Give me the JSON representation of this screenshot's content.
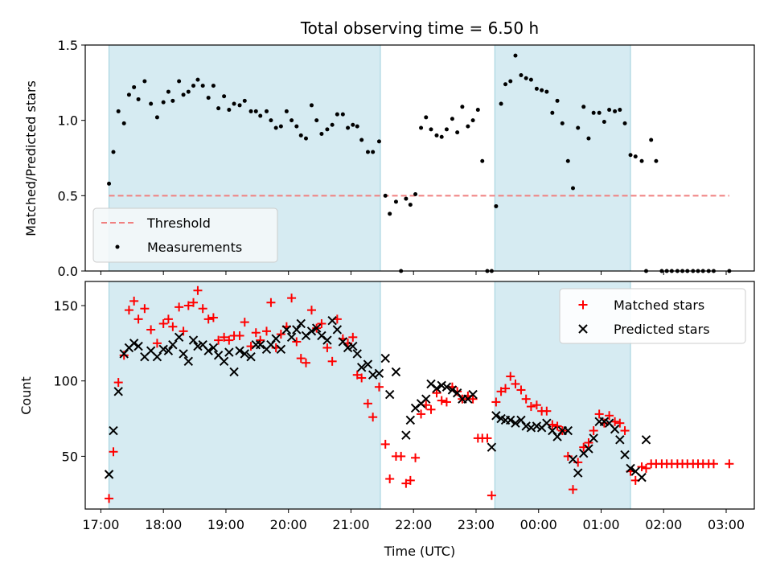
{
  "chart_data": [
    {
      "type": "scatter",
      "title": "Total observing time = 6.50 h",
      "xlabel": "",
      "ylabel": "Matched/Predicted stars",
      "ylim": [
        0,
        1.5
      ],
      "yticks": [
        "0.0",
        "0.5",
        "1.0",
        "1.5"
      ],
      "x_axis": {
        "type": "time",
        "unit": "hours (UTC, >24 = next day)",
        "range": [
          16.75,
          27.45
        ]
      },
      "legend": {
        "placement": "lower-left",
        "entries": [
          "Threshold",
          "Measurements"
        ]
      },
      "shaded_intervals": [
        {
          "start": 17.13,
          "end": 21.47
        },
        {
          "start": 23.3,
          "end": 25.47
        }
      ],
      "threshold": {
        "name": "Threshold",
        "value": 0.5,
        "x_start": 17.13,
        "x_end": 27.05,
        "color": "#f08080",
        "style": "dashed"
      },
      "series": [
        {
          "name": "Measurements",
          "color": "#000000",
          "x": [
            17.13,
            17.2,
            17.28,
            17.37,
            17.45,
            17.53,
            17.6,
            17.7,
            17.8,
            17.9,
            18.0,
            18.08,
            18.15,
            18.25,
            18.32,
            18.4,
            18.48,
            18.55,
            18.63,
            18.72,
            18.8,
            18.88,
            18.97,
            19.05,
            19.13,
            19.22,
            19.3,
            19.4,
            19.48,
            19.55,
            19.65,
            19.72,
            19.8,
            19.88,
            19.97,
            20.05,
            20.13,
            20.2,
            20.28,
            20.37,
            20.45,
            20.53,
            20.62,
            20.7,
            20.78,
            20.87,
            20.95,
            21.03,
            21.1,
            21.17,
            21.27,
            21.35,
            21.45,
            21.55,
            21.62,
            21.72,
            21.8,
            21.88,
            21.95,
            22.03,
            22.12,
            22.2,
            22.28,
            22.37,
            22.45,
            22.53,
            22.62,
            22.7,
            22.78,
            22.87,
            22.95,
            23.03,
            23.1,
            23.18,
            23.25,
            23.32,
            23.4,
            23.47,
            23.55,
            23.63,
            23.72,
            23.8,
            23.88,
            23.97,
            24.05,
            24.13,
            24.22,
            24.3,
            24.38,
            24.47,
            24.55,
            24.63,
            24.72,
            24.8,
            24.88,
            24.97,
            25.05,
            25.13,
            25.22,
            25.3,
            25.38,
            25.47,
            25.55,
            25.65,
            25.72,
            25.8,
            25.88,
            25.97,
            26.05,
            26.13,
            26.22,
            26.3,
            26.38,
            26.47,
            26.55,
            26.63,
            26.72,
            26.8,
            27.05
          ],
          "y": [
            0.58,
            0.79,
            1.06,
            0.98,
            1.17,
            1.22,
            1.14,
            1.26,
            1.11,
            1.02,
            1.12,
            1.19,
            1.13,
            1.26,
            1.17,
            1.19,
            1.23,
            1.27,
            1.23,
            1.15,
            1.23,
            1.08,
            1.16,
            1.07,
            1.11,
            1.1,
            1.13,
            1.06,
            1.06,
            1.03,
            1.06,
            1.0,
            0.95,
            0.96,
            1.06,
            1.0,
            0.96,
            0.9,
            0.88,
            1.1,
            1.0,
            0.91,
            0.94,
            0.97,
            1.04,
            1.04,
            0.95,
            0.97,
            0.96,
            0.87,
            0.79,
            0.79,
            0.86,
            0.5,
            0.38,
            0.46,
            0.0,
            0.48,
            0.44,
            0.51,
            0.95,
            1.02,
            0.94,
            0.9,
            0.89,
            0.94,
            1.01,
            0.92,
            1.09,
            0.96,
            1.0,
            1.07,
            0.73,
            0.0,
            0.0,
            0.43,
            1.11,
            1.24,
            1.26,
            1.43,
            1.3,
            1.28,
            1.27,
            1.21,
            1.2,
            1.19,
            1.05,
            1.13,
            0.98,
            0.73,
            0.55,
            0.95,
            1.09,
            0.88,
            1.05,
            1.05,
            0.99,
            1.07,
            1.06,
            1.07,
            0.98,
            0.77,
            0.76,
            0.73,
            0.0,
            0.87,
            0.73,
            0.0,
            0.0,
            0.0,
            0.0,
            0.0,
            0.0,
            0.0,
            0.0,
            0.0,
            0.0,
            0.0,
            0.0
          ]
        }
      ]
    },
    {
      "type": "scatter",
      "title": "",
      "xlabel": "Time (UTC)",
      "ylabel": "Count",
      "ylim": [
        15,
        166
      ],
      "yticks": [
        "50",
        "100",
        "150"
      ],
      "xticks": [
        "17:00",
        "18:00",
        "19:00",
        "20:00",
        "21:00",
        "22:00",
        "23:00",
        "00:00",
        "01:00",
        "02:00",
        "03:00"
      ],
      "x_axis": {
        "type": "time",
        "unit": "hours (UTC, >24 = next day)",
        "range": [
          16.75,
          27.45
        ]
      },
      "legend": {
        "placement": "upper-right",
        "entries": [
          "Matched stars",
          "Predicted stars"
        ]
      },
      "shaded_intervals": [
        {
          "start": 17.13,
          "end": 21.47
        },
        {
          "start": 23.3,
          "end": 25.47
        }
      ],
      "series": [
        {
          "name": "Matched stars",
          "marker": "+",
          "color": "#ff0000",
          "x": [
            17.13,
            17.2,
            17.28,
            17.37,
            17.45,
            17.53,
            17.6,
            17.7,
            17.8,
            17.9,
            18.0,
            18.08,
            18.15,
            18.25,
            18.32,
            18.4,
            18.48,
            18.55,
            18.63,
            18.72,
            18.8,
            18.88,
            18.97,
            19.05,
            19.13,
            19.22,
            19.3,
            19.4,
            19.48,
            19.55,
            19.65,
            19.72,
            19.8,
            19.88,
            19.97,
            20.05,
            20.13,
            20.2,
            20.28,
            20.37,
            20.45,
            20.53,
            20.62,
            20.7,
            20.78,
            20.87,
            20.95,
            21.03,
            21.1,
            21.17,
            21.27,
            21.35,
            21.45,
            21.55,
            21.62,
            21.72,
            21.8,
            21.88,
            21.95,
            22.03,
            22.12,
            22.2,
            22.28,
            22.37,
            22.45,
            22.53,
            22.62,
            22.7,
            22.78,
            22.87,
            22.95,
            23.03,
            23.1,
            23.18,
            23.25,
            23.32,
            23.4,
            23.47,
            23.55,
            23.63,
            23.72,
            23.8,
            23.88,
            23.97,
            24.05,
            24.13,
            24.22,
            24.3,
            24.38,
            24.47,
            24.55,
            24.63,
            24.72,
            24.8,
            24.88,
            24.97,
            25.05,
            25.13,
            25.22,
            25.3,
            25.38,
            25.47,
            25.55,
            25.65,
            25.72,
            25.8,
            25.88,
            25.97,
            26.05,
            26.13,
            26.22,
            26.3,
            26.38,
            26.47,
            26.55,
            26.63,
            26.72,
            26.8,
            27.05
          ],
          "y": [
            22,
            53,
            99,
            117,
            147,
            153,
            141,
            148,
            134,
            125,
            138,
            141,
            136,
            149,
            133,
            150,
            152,
            160,
            148,
            141,
            142,
            127,
            129,
            127,
            130,
            130,
            139,
            123,
            132,
            127,
            133,
            152,
            122,
            131,
            136,
            155,
            126,
            115,
            112,
            147,
            135,
            138,
            122,
            113,
            141,
            128,
            125,
            129,
            104,
            102,
            85,
            76,
            96,
            58,
            35,
            50,
            50,
            32,
            34,
            49,
            78,
            84,
            81,
            92,
            87,
            86,
            96,
            93,
            88,
            90,
            88,
            62,
            62,
            62,
            24,
            86,
            93,
            95,
            103,
            98,
            94,
            88,
            83,
            84,
            80,
            80,
            71,
            70,
            67,
            50,
            28,
            46,
            56,
            59,
            67,
            78,
            72,
            77,
            73,
            72,
            67,
            40,
            34,
            43,
            42,
            45,
            45,
            45,
            45,
            45,
            45,
            45,
            45,
            45,
            45,
            45,
            45,
            45,
            45
          ]
        },
        {
          "name": "Predicted stars",
          "marker": "x",
          "color": "#000000",
          "x": [
            17.13,
            17.2,
            17.28,
            17.37,
            17.45,
            17.53,
            17.6,
            17.7,
            17.8,
            17.9,
            18.0,
            18.08,
            18.15,
            18.25,
            18.32,
            18.4,
            18.48,
            18.55,
            18.63,
            18.72,
            18.8,
            18.88,
            18.97,
            19.05,
            19.13,
            19.22,
            19.3,
            19.4,
            19.48,
            19.55,
            19.65,
            19.72,
            19.8,
            19.88,
            19.97,
            20.05,
            20.13,
            20.2,
            20.28,
            20.37,
            20.45,
            20.53,
            20.62,
            20.7,
            20.78,
            20.87,
            20.95,
            21.03,
            21.1,
            21.17,
            21.27,
            21.35,
            21.45,
            21.55,
            21.62,
            21.72,
            21.88,
            21.95,
            22.03,
            22.12,
            22.2,
            22.28,
            22.37,
            22.45,
            22.53,
            22.62,
            22.7,
            22.78,
            22.87,
            22.95,
            23.25,
            23.32,
            23.4,
            23.47,
            23.55,
            23.63,
            23.72,
            23.8,
            23.88,
            23.97,
            24.05,
            24.13,
            24.22,
            24.3,
            24.38,
            24.47,
            24.55,
            24.63,
            24.72,
            24.8,
            24.88,
            24.97,
            25.05,
            25.13,
            25.22,
            25.3,
            25.38,
            25.47,
            25.55,
            25.65,
            25.72
          ],
          "y": [
            38,
            67,
            93,
            118,
            122,
            125,
            123,
            116,
            120,
            116,
            121,
            120,
            124,
            129,
            118,
            113,
            127,
            123,
            124,
            120,
            122,
            117,
            113,
            119,
            106,
            120,
            118,
            116,
            124,
            124,
            121,
            124,
            128,
            121,
            134,
            129,
            134,
            138,
            130,
            133,
            135,
            130,
            127,
            140,
            134,
            126,
            122,
            123,
            118,
            109,
            111,
            104,
            105,
            115,
            91,
            106,
            64,
            74,
            82,
            85,
            88,
            98,
            95,
            97,
            96,
            94,
            92,
            88,
            88,
            91,
            56,
            77,
            75,
            74,
            74,
            72,
            74,
            70,
            69,
            70,
            69,
            72,
            67,
            63,
            67,
            67,
            48,
            39,
            52,
            55,
            62,
            73,
            73,
            72,
            68,
            61,
            51,
            42,
            40,
            36,
            61
          ]
        }
      ]
    }
  ]
}
